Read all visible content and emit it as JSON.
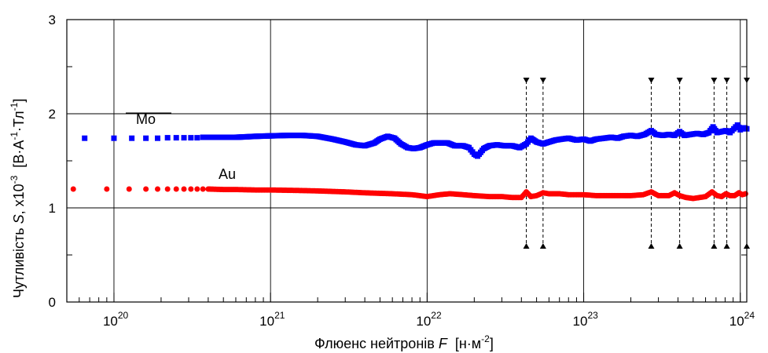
{
  "chart_data": {
    "type": "scatter",
    "x_scale": "log",
    "xlim": [
      "5e19",
      "1.1e24"
    ],
    "ylim": [
      0,
      3
    ],
    "grid": true,
    "xlabel": {
      "text": "Флюенс нейтронів ",
      "var": "F",
      "units_pre": "[н·м",
      "units_exp": "-2",
      "units_post": "]"
    },
    "ylabel": {
      "text": "Чутливість ",
      "var": "S",
      "mult": ", x10",
      "mult_exp": "-3",
      "units": "[В·А",
      "u1": "-1",
      "u2": "·Тл",
      "u3": "-1",
      "u4": "]"
    },
    "x_ticks": [
      {
        "base": "10",
        "exp": "20",
        "value": "1e20"
      },
      {
        "base": "10",
        "exp": "21",
        "value": "1e21"
      },
      {
        "base": "10",
        "exp": "22",
        "value": "1e22"
      },
      {
        "base": "10",
        "exp": "23",
        "value": "1e23"
      },
      {
        "base": "10",
        "exp": "24",
        "value": "1e24"
      }
    ],
    "y_ticks": [
      "0",
      "1",
      "2",
      "3"
    ],
    "series": [
      {
        "name": "Mo",
        "color": "#0000ff",
        "marker": "square",
        "points": [
          [
            "6.5e19",
            1.74
          ],
          [
            "1e20",
            1.74
          ],
          [
            "1.3e20",
            1.74
          ],
          [
            "1.6e20",
            1.74
          ],
          [
            "1.9e20",
            1.74
          ],
          [
            "2.2e20",
            1.745
          ],
          [
            "2.5e20",
            1.745
          ],
          [
            "2.8e20",
            1.745
          ],
          [
            "3.1e20",
            1.745
          ],
          [
            "3.4e20",
            1.745
          ],
          [
            "3.7e20",
            1.75
          ],
          [
            "4e20",
            1.75
          ],
          [
            "4.5e20",
            1.75
          ],
          [
            "5e20",
            1.75
          ],
          [
            "6e20",
            1.75
          ],
          [
            "7e20",
            1.755
          ],
          [
            "8e20",
            1.76
          ],
          [
            "1e21",
            1.765
          ],
          [
            "1.3e21",
            1.77
          ],
          [
            "1.6e21",
            1.77
          ],
          [
            "2e21",
            1.76
          ],
          [
            "2.5e21",
            1.73
          ],
          [
            "3e21",
            1.7
          ],
          [
            "3.5e21",
            1.67
          ],
          [
            "4e21",
            1.66
          ],
          [
            "4.6e21",
            1.69
          ],
          [
            "5e21",
            1.73
          ],
          [
            "5.6e21",
            1.76
          ],
          [
            "6.2e21",
            1.74
          ],
          [
            "6.8e21",
            1.68
          ],
          [
            "7.5e21",
            1.64
          ],
          [
            "8.2e21",
            1.63
          ],
          [
            "9e21",
            1.64
          ],
          [
            "1e22",
            1.67
          ],
          [
            "1.1e22",
            1.69
          ],
          [
            "1.2e22",
            1.69
          ],
          [
            "1.35e22",
            1.69
          ],
          [
            "1.5e22",
            1.66
          ],
          [
            "1.7e22",
            1.66
          ],
          [
            "1.85e22",
            1.64
          ],
          [
            "2e22",
            1.57
          ],
          [
            "2.1e22",
            1.55
          ],
          [
            "2.3e22",
            1.63
          ],
          [
            "2.5e22",
            1.66
          ],
          [
            "2.8e22",
            1.67
          ],
          [
            "3.1e22",
            1.66
          ],
          [
            "3.5e22",
            1.66
          ],
          [
            "3.9e22",
            1.64
          ],
          [
            "4.3e22",
            1.68
          ],
          [
            "4.6e22",
            1.74
          ],
          [
            "5e22",
            1.7
          ],
          [
            "5.5e22",
            1.68
          ],
          [
            "6e22",
            1.7
          ],
          [
            "6.6e22",
            1.72
          ],
          [
            "7.2e22",
            1.73
          ],
          [
            "8e22",
            1.74
          ],
          [
            "9e22",
            1.72
          ],
          [
            "1e23",
            1.73
          ],
          [
            "1.1e23",
            1.71
          ],
          [
            "1.2e23",
            1.73
          ],
          [
            "1.35e23",
            1.74
          ],
          [
            "1.5e23",
            1.75
          ],
          [
            "1.65e23",
            1.74
          ],
          [
            "1.8e23",
            1.76
          ],
          [
            "2e23",
            1.77
          ],
          [
            "2.2e23",
            1.76
          ],
          [
            "2.45e23",
            1.78
          ],
          [
            "2.7e23",
            1.82
          ],
          [
            "2.9e23",
            1.78
          ],
          [
            "3.2e23",
            1.77
          ],
          [
            "3.5e23",
            1.78
          ],
          [
            "3.8e23",
            1.77
          ],
          [
            "4.1e23",
            1.81
          ],
          [
            "4.4e23",
            1.77
          ],
          [
            "4.8e23",
            1.78
          ],
          [
            "5.3e23",
            1.79
          ],
          [
            "5.8e23",
            1.78
          ],
          [
            "6.3e23",
            1.8
          ],
          [
            "6.7e23",
            1.86
          ],
          [
            "7.1e23",
            1.8
          ],
          [
            "7.6e23",
            1.81
          ],
          [
            "8.1e23",
            1.82
          ],
          [
            "8.6e23",
            1.8
          ],
          [
            "9.1e23",
            1.84
          ],
          [
            "9.6e23",
            1.88
          ],
          [
            "1e24",
            1.83
          ],
          [
            "1.05e24",
            1.85
          ],
          [
            "1.1e24",
            1.84
          ]
        ]
      },
      {
        "name": "Au",
        "color": "#ff0000",
        "marker": "circle",
        "points": [
          [
            "5.5e19",
            1.2
          ],
          [
            "9e19",
            1.2
          ],
          [
            "1.25e20",
            1.2
          ],
          [
            "1.6e20",
            1.2
          ],
          [
            "1.9e20",
            1.2
          ],
          [
            "2.2e20",
            1.2
          ],
          [
            "2.5e20",
            1.2
          ],
          [
            "2.8e20",
            1.2
          ],
          [
            "3.1e20",
            1.2
          ],
          [
            "3.4e20",
            1.2
          ],
          [
            "3.7e20",
            1.2
          ],
          [
            "4e20",
            1.2
          ],
          [
            "5e20",
            1.195
          ],
          [
            "6e20",
            1.195
          ],
          [
            "8e20",
            1.19
          ],
          [
            "1e21",
            1.19
          ],
          [
            "1.5e21",
            1.185
          ],
          [
            "2e21",
            1.18
          ],
          [
            "3e21",
            1.17
          ],
          [
            "4e21",
            1.16
          ],
          [
            "6e21",
            1.15
          ],
          [
            "8e21",
            1.14
          ],
          [
            "1e22",
            1.12
          ],
          [
            "1.2e22",
            1.14
          ],
          [
            "1.4e22",
            1.15
          ],
          [
            "1.7e22",
            1.14
          ],
          [
            "2e22",
            1.13
          ],
          [
            "2.5e22",
            1.12
          ],
          [
            "3e22",
            1.12
          ],
          [
            "3.5e22",
            1.11
          ],
          [
            "4e22",
            1.11
          ],
          [
            "4.3e22",
            1.17
          ],
          [
            "4.6e22",
            1.12
          ],
          [
            "5e22",
            1.13
          ],
          [
            "5.5e22",
            1.16
          ],
          [
            "6e22",
            1.15
          ],
          [
            "7e22",
            1.15
          ],
          [
            "8e22",
            1.14
          ],
          [
            "9e22",
            1.14
          ],
          [
            "1e23",
            1.14
          ],
          [
            "1.2e23",
            1.13
          ],
          [
            "1.4e23",
            1.13
          ],
          [
            "1.6e23",
            1.13
          ],
          [
            "1.8e23",
            1.13
          ],
          [
            "2e23",
            1.13
          ],
          [
            "2.4e23",
            1.14
          ],
          [
            "2.7e23",
            1.17
          ],
          [
            "3e23",
            1.13
          ],
          [
            "3.5e23",
            1.13
          ],
          [
            "3.8e23",
            1.16
          ],
          [
            "4.1e23",
            1.13
          ],
          [
            "4.5e23",
            1.11
          ],
          [
            "5e23",
            1.1
          ],
          [
            "5.5e23",
            1.11
          ],
          [
            "6e23",
            1.12
          ],
          [
            "6.6e23",
            1.17
          ],
          [
            "7.1e23",
            1.13
          ],
          [
            "7.6e23",
            1.12
          ],
          [
            "8.1e23",
            1.15
          ],
          [
            "8.6e23",
            1.13
          ],
          [
            "9.2e23",
            1.13
          ],
          [
            "9.8e23",
            1.16
          ],
          [
            "1.03e24",
            1.14
          ],
          [
            "1.08e24",
            1.15
          ]
        ]
      }
    ],
    "markers": [
      "4.3e22",
      "5.5e22",
      "2.7e23",
      "4.1e23",
      "6.8e23",
      "8.2e23",
      "1.1e24"
    ],
    "markers_y": {
      "top": 2.35,
      "bottom": 0.6
    }
  }
}
